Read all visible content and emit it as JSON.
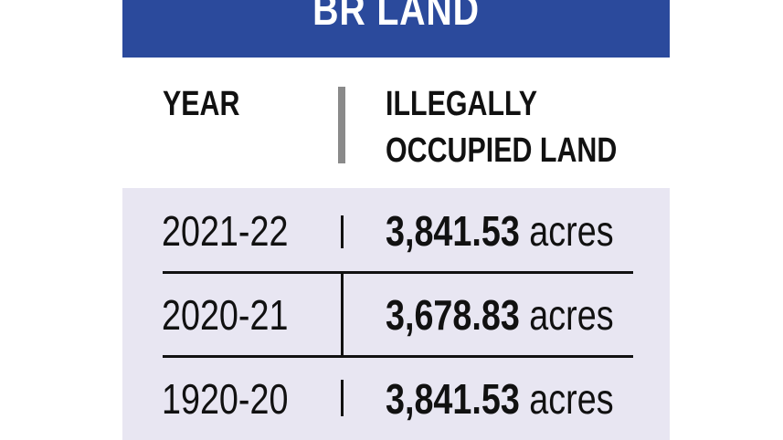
{
  "title": "BR LAND",
  "colors": {
    "title_bar": "#2b4a9c",
    "table_background": "#e8e6f2",
    "divider": "#8a8a8a"
  },
  "columns": {
    "year": "YEAR",
    "land_line1": "ILLEGALLY",
    "land_line2": "OCCUPIED LAND"
  },
  "chart_data": {
    "type": "table",
    "title": "BR LAND",
    "columns": [
      "YEAR",
      "ILLEGALLY OCCUPIED LAND"
    ],
    "rows": [
      {
        "year": "2021-22",
        "value": "3,841.53",
        "unit": "acres"
      },
      {
        "year": "2020-21",
        "value": "3,678.83",
        "unit": "acres"
      },
      {
        "year": "1920-20",
        "value": "3,841.53",
        "unit": "acres"
      }
    ]
  }
}
